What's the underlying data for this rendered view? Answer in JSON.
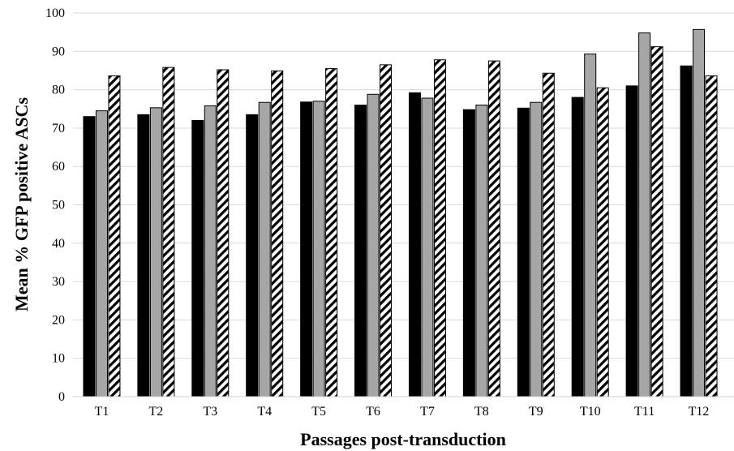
{
  "chart_data": {
    "type": "bar",
    "title": "",
    "xlabel": "Passages post-transduction",
    "ylabel": "Mean % GFP positive ASCs",
    "categories": [
      "T1",
      "T2",
      "T3",
      "T4",
      "T5",
      "T6",
      "T7",
      "T8",
      "T9",
      "T10",
      "T11",
      "T12"
    ],
    "ylim": [
      0,
      100
    ],
    "yticks": [
      0,
      10,
      20,
      30,
      40,
      50,
      60,
      70,
      80,
      90,
      100
    ],
    "grid": true,
    "legend": "none",
    "series": [
      {
        "fill": "#000000",
        "pattern": "solid",
        "values": [
          73,
          73.5,
          72,
          73.5,
          76.8,
          76,
          79.2,
          74.8,
          75.2,
          78,
          81,
          86.2
        ]
      },
      {
        "fill": "#a6a6a6",
        "pattern": "solid",
        "values": [
          74.5,
          75.3,
          75.8,
          76.7,
          77,
          78.8,
          77.8,
          76,
          76.7,
          89.3,
          94.8,
          95.7
        ]
      },
      {
        "fill": "#ffffff",
        "pattern": "diagonal-stripes",
        "values": [
          83.6,
          85.8,
          85.2,
          84.9,
          85.5,
          86.5,
          87.8,
          87.5,
          84.3,
          80.5,
          91.2,
          83.6
        ]
      }
    ]
  }
}
